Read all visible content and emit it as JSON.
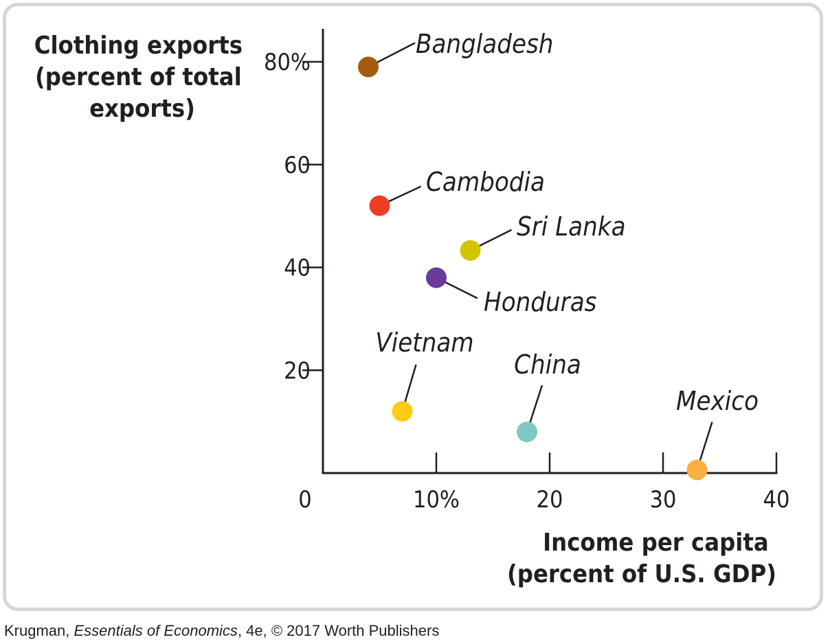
{
  "chart_data": {
    "type": "scatter",
    "ylabel": [
      "Clothing exports",
      "(percent of total",
      "exports)"
    ],
    "xlabel": [
      "Income per capita",
      "(percent of U.S. GDP)"
    ],
    "xlim": [
      0,
      40
    ],
    "ylim": [
      0,
      80
    ],
    "x_ticks": [
      {
        "value": 0,
        "label": "0"
      },
      {
        "value": 10,
        "label": "10%"
      },
      {
        "value": 20,
        "label": "20"
      },
      {
        "value": 30,
        "label": "30"
      },
      {
        "value": 40,
        "label": "40"
      }
    ],
    "y_ticks": [
      {
        "value": 20,
        "label": "20"
      },
      {
        "value": 40,
        "label": "40"
      },
      {
        "value": 60,
        "label": "60"
      },
      {
        "value": 80,
        "label": "80%"
      }
    ],
    "points": [
      {
        "name": "Bangladesh",
        "x": 4,
        "y": 79,
        "color": "#a65a10"
      },
      {
        "name": "Cambodia",
        "x": 5,
        "y": 52,
        "color": "#ef3e23"
      },
      {
        "name": "Sri Lanka",
        "x": 13,
        "y": 43.3,
        "color": "#d4c400"
      },
      {
        "name": "Honduras",
        "x": 10,
        "y": 38,
        "color": "#6a3a9c"
      },
      {
        "name": "Vietnam",
        "x": 7,
        "y": 12,
        "color": "#ffcc14"
      },
      {
        "name": "China",
        "x": 18,
        "y": 8,
        "color": "#7ecac2"
      },
      {
        "name": "Mexico",
        "x": 33,
        "y": 0.6,
        "color": "#fbb040"
      }
    ]
  },
  "credit": {
    "author": "Krugman, ",
    "book": "Essentials of Economics",
    "rest": ", 4e, © 2017 Worth Publishers"
  }
}
